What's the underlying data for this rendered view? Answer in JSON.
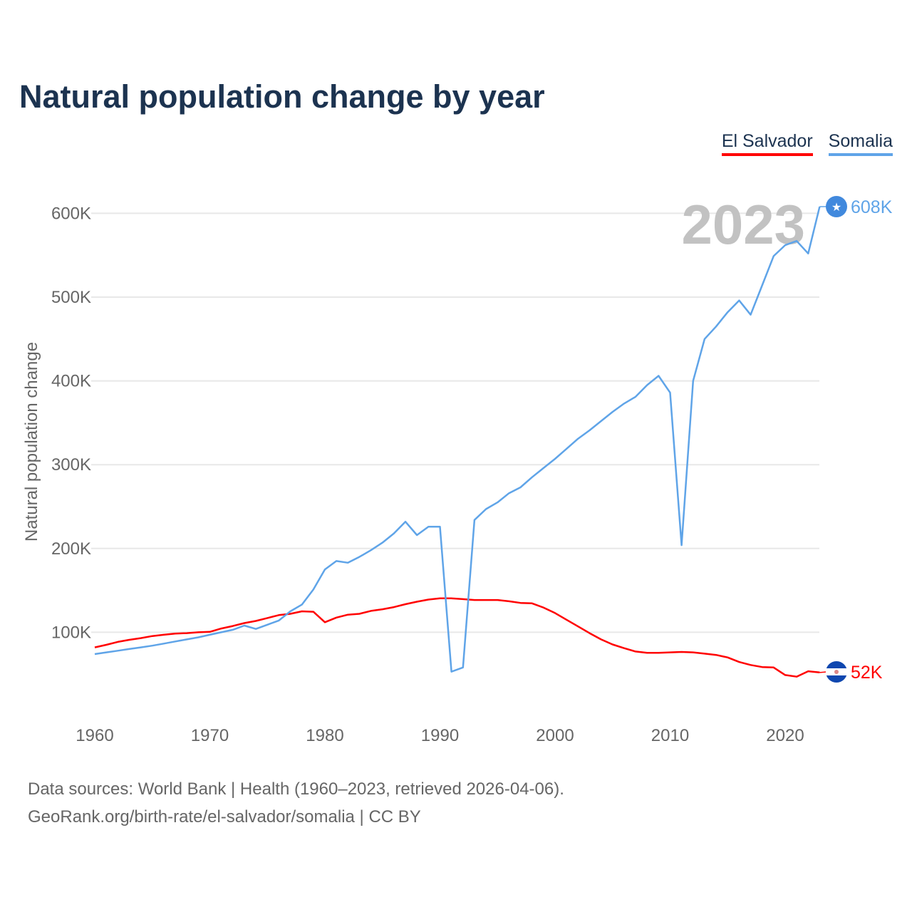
{
  "title": "Natural population change by year",
  "legend": [
    {
      "label": "El Salvador",
      "color": "#ff0000"
    },
    {
      "label": "Somalia",
      "color": "#5fa4e8"
    }
  ],
  "source_line1": "Data sources: World Bank | Health (1960–2023, retrieved 2026-04-06).",
  "source_line2": "GeoRank.org/birth-rate/el-salvador/somalia | CC BY",
  "chart_data": {
    "type": "line",
    "title": "Natural population change by year",
    "xlabel": "",
    "ylabel": "Natural population change",
    "xlim": [
      1960,
      2023
    ],
    "ylim": [
      0,
      650000
    ],
    "x_ticks": [
      "1960",
      "1970",
      "1980",
      "1990",
      "2000",
      "2010",
      "2020"
    ],
    "y_ticks": [
      {
        "v": 100000,
        "label": "100K"
      },
      {
        "v": 200000,
        "label": "200K"
      },
      {
        "v": 300000,
        "label": "300K"
      },
      {
        "v": 400000,
        "label": "400K"
      },
      {
        "v": 500000,
        "label": "500K"
      },
      {
        "v": 600000,
        "label": "600K"
      }
    ],
    "year_label": "2023",
    "legend_position": "top-right",
    "x_start": 1960,
    "series": [
      {
        "name": "El Salvador",
        "color": "#ff0000",
        "end_label": "52K",
        "values": [
          82000,
          85000,
          88500,
          91000,
          93000,
          95500,
          97000,
          98500,
          99000,
          100000,
          100500,
          104500,
          107500,
          111000,
          113500,
          117000,
          120500,
          122000,
          125000,
          124500,
          112000,
          117500,
          121000,
          122000,
          125500,
          127500,
          130000,
          133500,
          136500,
          139000,
          140500,
          140500,
          139500,
          138500,
          138500,
          138500,
          137000,
          135000,
          134500,
          129500,
          123000,
          115000,
          107000,
          99000,
          91500,
          85500,
          81000,
          77000,
          75500,
          75500,
          76000,
          76500,
          76000,
          74500,
          73000,
          70000,
          64500,
          61000,
          58500,
          58000,
          49000,
          47000,
          53500,
          52000
        ]
      },
      {
        "name": "Somalia",
        "color": "#5fa4e8",
        "end_label": "608K",
        "values": [
          74000,
          76000,
          78000,
          80000,
          82000,
          84000,
          86500,
          89000,
          91500,
          94000,
          97000,
          100000,
          103000,
          108000,
          104000,
          109000,
          114000,
          125000,
          133000,
          151000,
          175000,
          185000,
          183000,
          190000,
          198000,
          207000,
          218000,
          232000,
          216000,
          226000,
          226000,
          53000,
          58000,
          234000,
          247000,
          255000,
          266000,
          273000,
          285000,
          296000,
          307000,
          319000,
          331000,
          341000,
          352000,
          363000,
          373000,
          381000,
          395000,
          406000,
          386000,
          204000,
          400000,
          450000,
          465000,
          482000,
          496000,
          479000,
          514000,
          549000,
          562000,
          567000,
          552000,
          608000
        ]
      }
    ]
  }
}
